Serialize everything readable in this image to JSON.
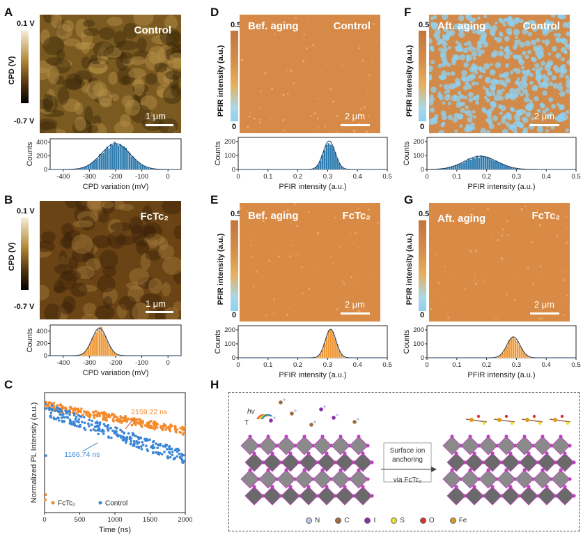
{
  "panels": {
    "A": {
      "label": "A",
      "overlay": "Control",
      "scalebar": "1 μm",
      "cbar_top": "0.1 V",
      "cbar_bottom": "-0.7 V",
      "cbar_title": "CPD (V)",
      "tone": "#7a5a20"
    },
    "B": {
      "label": "B",
      "overlay": "FcTc₂",
      "scalebar": "1 μm",
      "cbar_top": "0.1 V",
      "cbar_bottom": "-0.7 V",
      "cbar_title": "CPD (V)",
      "tone": "#6a4415"
    },
    "C": {
      "label": "C"
    },
    "D": {
      "label": "D",
      "overlay_left": "Bef. aging",
      "overlay_right": "Control",
      "scalebar": "2 μm",
      "cbar_top": "0.5",
      "cbar_bottom": "0",
      "cbar_title": "PFIR intensity (a.u.)",
      "tone": "#d78a48"
    },
    "E": {
      "label": "E",
      "overlay_left": "Bef. aging",
      "overlay_right": "FcTc₂",
      "scalebar": "2 μm",
      "cbar_top": "0.5",
      "cbar_bottom": "0",
      "cbar_title": "PFIR intensity (a.u.)",
      "tone": "#d98a45"
    },
    "F": {
      "label": "F",
      "overlay_left": "Aft. aging",
      "overlay_right": "Control",
      "scalebar": "2 μm",
      "cbar_top": "0.5",
      "cbar_bottom": "0",
      "cbar_title": "PFIR intensity (a.u.)",
      "tone": "#b89a6a"
    },
    "G": {
      "label": "G",
      "overlay_left": "Aft. aging",
      "overlay_right": "FcTc₂",
      "scalebar": "2 μm",
      "cbar_top": "0.5",
      "cbar_bottom": "0",
      "cbar_title": "PFIR intensity (a.u.)",
      "tone": "#d98a45"
    },
    "H": {
      "label": "H"
    }
  },
  "schematic": {
    "arrow_line1": "Surface ion",
    "arrow_line2": "anchoring",
    "arrow_line3": "via FcTc₂",
    "stimuli_hv": "hv",
    "stimuli_T": "T",
    "legend": [
      {
        "label": "N",
        "color": "#b8c4ee"
      },
      {
        "label": "C",
        "color": "#a06a3a"
      },
      {
        "label": "I",
        "color": "#8a2ea8"
      },
      {
        "label": "S",
        "color": "#e8e030"
      },
      {
        "label": "O",
        "color": "#e03030"
      },
      {
        "label": "Fe",
        "color": "#d89a20"
      }
    ]
  },
  "chart_data": [
    {
      "id": "A-hist",
      "type": "bar",
      "color": "#2f7db0",
      "xlabel": "CPD variation (mV)",
      "ylabel": "Counts",
      "xlim": [
        -450,
        50
      ],
      "ylim": [
        0,
        450
      ],
      "xticks": [
        -400,
        -300,
        -200,
        -100,
        0
      ],
      "yticks": [
        0,
        200,
        400
      ],
      "gauss": {
        "mu": -200,
        "sigma": 55,
        "peak": 380
      }
    },
    {
      "id": "B-hist",
      "type": "bar",
      "color": "#f09a3a",
      "xlabel": "CPD variation (mV)",
      "ylabel": "Counts",
      "xlim": [
        -450,
        50
      ],
      "ylim": [
        0,
        500
      ],
      "xticks": [
        -400,
        -300,
        -200,
        -100,
        0
      ],
      "yticks": [
        0,
        200,
        400
      ],
      "gauss": {
        "mu": -262,
        "sigma": 28,
        "peak": 450
      }
    },
    {
      "id": "D-hist",
      "type": "bar",
      "color": "#2f7db0",
      "xlabel": "PFIR intensity (a.u.)",
      "ylabel": "Counts",
      "xlim": [
        0,
        0.5
      ],
      "ylim": [
        0,
        230
      ],
      "xticks": [
        0.0,
        0.1,
        0.2,
        0.3,
        0.4,
        0.5
      ],
      "yticks": [
        0,
        100,
        200
      ],
      "gauss": {
        "mu": 0.305,
        "sigma": 0.02,
        "peak": 205
      }
    },
    {
      "id": "E-hist",
      "type": "bar",
      "color": "#f09a3a",
      "xlabel": "PFIR intensity (a.u.)",
      "ylabel": "Counts",
      "xlim": [
        0,
        0.5
      ],
      "ylim": [
        0,
        230
      ],
      "xticks": [
        0.0,
        0.1,
        0.2,
        0.3,
        0.4,
        0.5
      ],
      "yticks": [
        0,
        100,
        200
      ],
      "gauss": {
        "mu": 0.31,
        "sigma": 0.018,
        "peak": 205
      }
    },
    {
      "id": "F-hist",
      "type": "bar",
      "color": "#2f7db0",
      "xlabel": "PFIR intensity (a.u.)",
      "ylabel": "Counts",
      "xlim": [
        0,
        0.5
      ],
      "ylim": [
        0,
        230
      ],
      "xticks": [
        0.0,
        0.1,
        0.2,
        0.3,
        0.4,
        0.5
      ],
      "yticks": [
        0,
        100,
        200
      ],
      "gauss": {
        "mu": 0.18,
        "sigma": 0.055,
        "peak": 95
      }
    },
    {
      "id": "G-hist",
      "type": "bar",
      "color": "#f09a3a",
      "xlabel": "PFIR intensity (a.u.)",
      "ylabel": "Counts",
      "xlim": [
        0,
        0.5
      ],
      "ylim": [
        0,
        230
      ],
      "xticks": [
        0.0,
        0.1,
        0.2,
        0.3,
        0.4,
        0.5
      ],
      "yticks": [
        0,
        100,
        200
      ],
      "gauss": {
        "mu": 0.29,
        "sigma": 0.022,
        "peak": 150
      }
    },
    {
      "id": "C-plot",
      "type": "scatter",
      "xlabel": "Time (ns)",
      "ylabel": "Normalized PL Intensity (a.u.)",
      "xlim": [
        0,
        2000
      ],
      "xticks": [
        0,
        500,
        1000,
        1500,
        2000
      ],
      "log_y": true,
      "series": [
        {
          "name": "FcTc₂",
          "color": "#f58a2a",
          "tau_ns": 2159.22,
          "annotation": "2159.22 ns"
        },
        {
          "name": "Control",
          "color": "#3b86d6",
          "tau_ns": 1166.74,
          "annotation": "1166.74 ns"
        }
      ]
    }
  ]
}
